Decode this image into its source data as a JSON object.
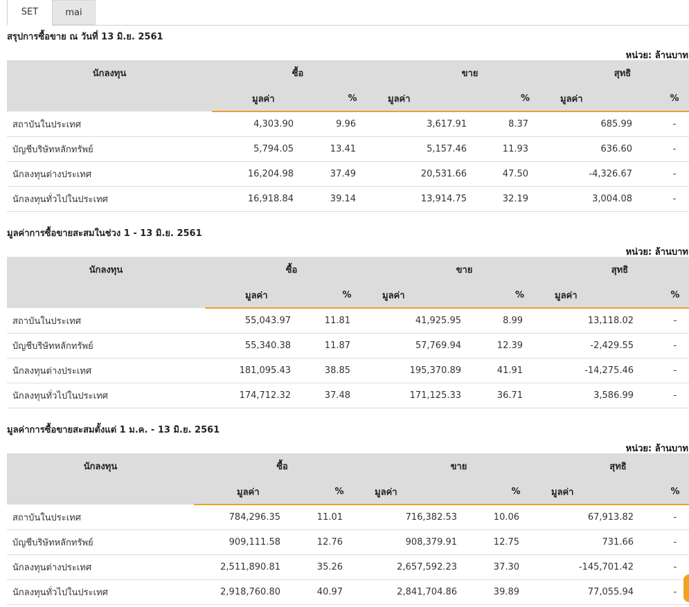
{
  "tabs": [
    {
      "label": "SET",
      "active": true
    },
    {
      "label": "mai",
      "active": false
    }
  ],
  "unit_label": "หน่วย: ล้านบาท",
  "headers": {
    "investor": "นักลงทุน",
    "buy": "ซื้อ",
    "sell": "ขาย",
    "net": "สุทธิ",
    "value": "มูลค่า",
    "percent": "%"
  },
  "colors": {
    "accent": "#f0a028",
    "positive": "#1a8a1a",
    "negative": "#e01414",
    "header_bg": "#dcdcdc"
  },
  "sections": [
    {
      "title": "สรุปการซื้อขาย ณ วันที่ 13 มิ.ย. 2561",
      "rows": [
        {
          "name": "สถาบันในประเทศ",
          "buy_value": "4,303.90",
          "buy_pct": "9.96",
          "sell_value": "3,617.91",
          "sell_pct": "8.37",
          "net_value": "685.99",
          "net_pct": "-",
          "net_sign": "pos"
        },
        {
          "name": "บัญชีบริษัทหลักทรัพย์",
          "buy_value": "5,794.05",
          "buy_pct": "13.41",
          "sell_value": "5,157.46",
          "sell_pct": "11.93",
          "net_value": "636.60",
          "net_pct": "-",
          "net_sign": "pos"
        },
        {
          "name": "นักลงทุนต่างประเทศ",
          "buy_value": "16,204.98",
          "buy_pct": "37.49",
          "sell_value": "20,531.66",
          "sell_pct": "47.50",
          "net_value": "-4,326.67",
          "net_pct": "-",
          "net_sign": "neg"
        },
        {
          "name": "นักลงทุนทั่วไปในประเทศ",
          "buy_value": "16,918.84",
          "buy_pct": "39.14",
          "sell_value": "13,914.75",
          "sell_pct": "32.19",
          "net_value": "3,004.08",
          "net_pct": "-",
          "net_sign": "pos"
        }
      ]
    },
    {
      "title": "มูลค่าการซื้อขายสะสมในช่วง 1 - 13 มิ.ย. 2561",
      "rows": [
        {
          "name": "สถาบันในประเทศ",
          "buy_value": "55,043.97",
          "buy_pct": "11.81",
          "sell_value": "41,925.95",
          "sell_pct": "8.99",
          "net_value": "13,118.02",
          "net_pct": "-",
          "net_sign": "pos"
        },
        {
          "name": "บัญชีบริษัทหลักทรัพย์",
          "buy_value": "55,340.38",
          "buy_pct": "11.87",
          "sell_value": "57,769.94",
          "sell_pct": "12.39",
          "net_value": "-2,429.55",
          "net_pct": "-",
          "net_sign": "neg"
        },
        {
          "name": "นักลงทุนต่างประเทศ",
          "buy_value": "181,095.43",
          "buy_pct": "38.85",
          "sell_value": "195,370.89",
          "sell_pct": "41.91",
          "net_value": "-14,275.46",
          "net_pct": "-",
          "net_sign": "neg"
        },
        {
          "name": "นักลงทุนทั่วไปในประเทศ",
          "buy_value": "174,712.32",
          "buy_pct": "37.48",
          "sell_value": "171,125.33",
          "sell_pct": "36.71",
          "net_value": "3,586.99",
          "net_pct": "-",
          "net_sign": "pos"
        }
      ]
    },
    {
      "title": "มูลค่าการซื้อขายสะสมตั้งแต่ 1 ม.ค. - 13 มิ.ย. 2561",
      "rows": [
        {
          "name": "สถาบันในประเทศ",
          "buy_value": "784,296.35",
          "buy_pct": "11.01",
          "sell_value": "716,382.53",
          "sell_pct": "10.06",
          "net_value": "67,913.82",
          "net_pct": "-",
          "net_sign": "pos"
        },
        {
          "name": "บัญชีบริษัทหลักทรัพย์",
          "buy_value": "909,111.58",
          "buy_pct": "12.76",
          "sell_value": "908,379.91",
          "sell_pct": "12.75",
          "net_value": "731.66",
          "net_pct": "-",
          "net_sign": "pos"
        },
        {
          "name": "นักลงทุนต่างประเทศ",
          "buy_value": "2,511,890.81",
          "buy_pct": "35.26",
          "sell_value": "2,657,592.23",
          "sell_pct": "37.30",
          "net_value": "-145,701.42",
          "net_pct": "-",
          "net_sign": "neg"
        },
        {
          "name": "นักลงทุนทั่วไปในประเทศ",
          "buy_value": "2,918,760.80",
          "buy_pct": "40.97",
          "sell_value": "2,841,704.86",
          "sell_pct": "39.89",
          "net_value": "77,055.94",
          "net_pct": "-",
          "net_sign": "pos"
        }
      ]
    }
  ]
}
